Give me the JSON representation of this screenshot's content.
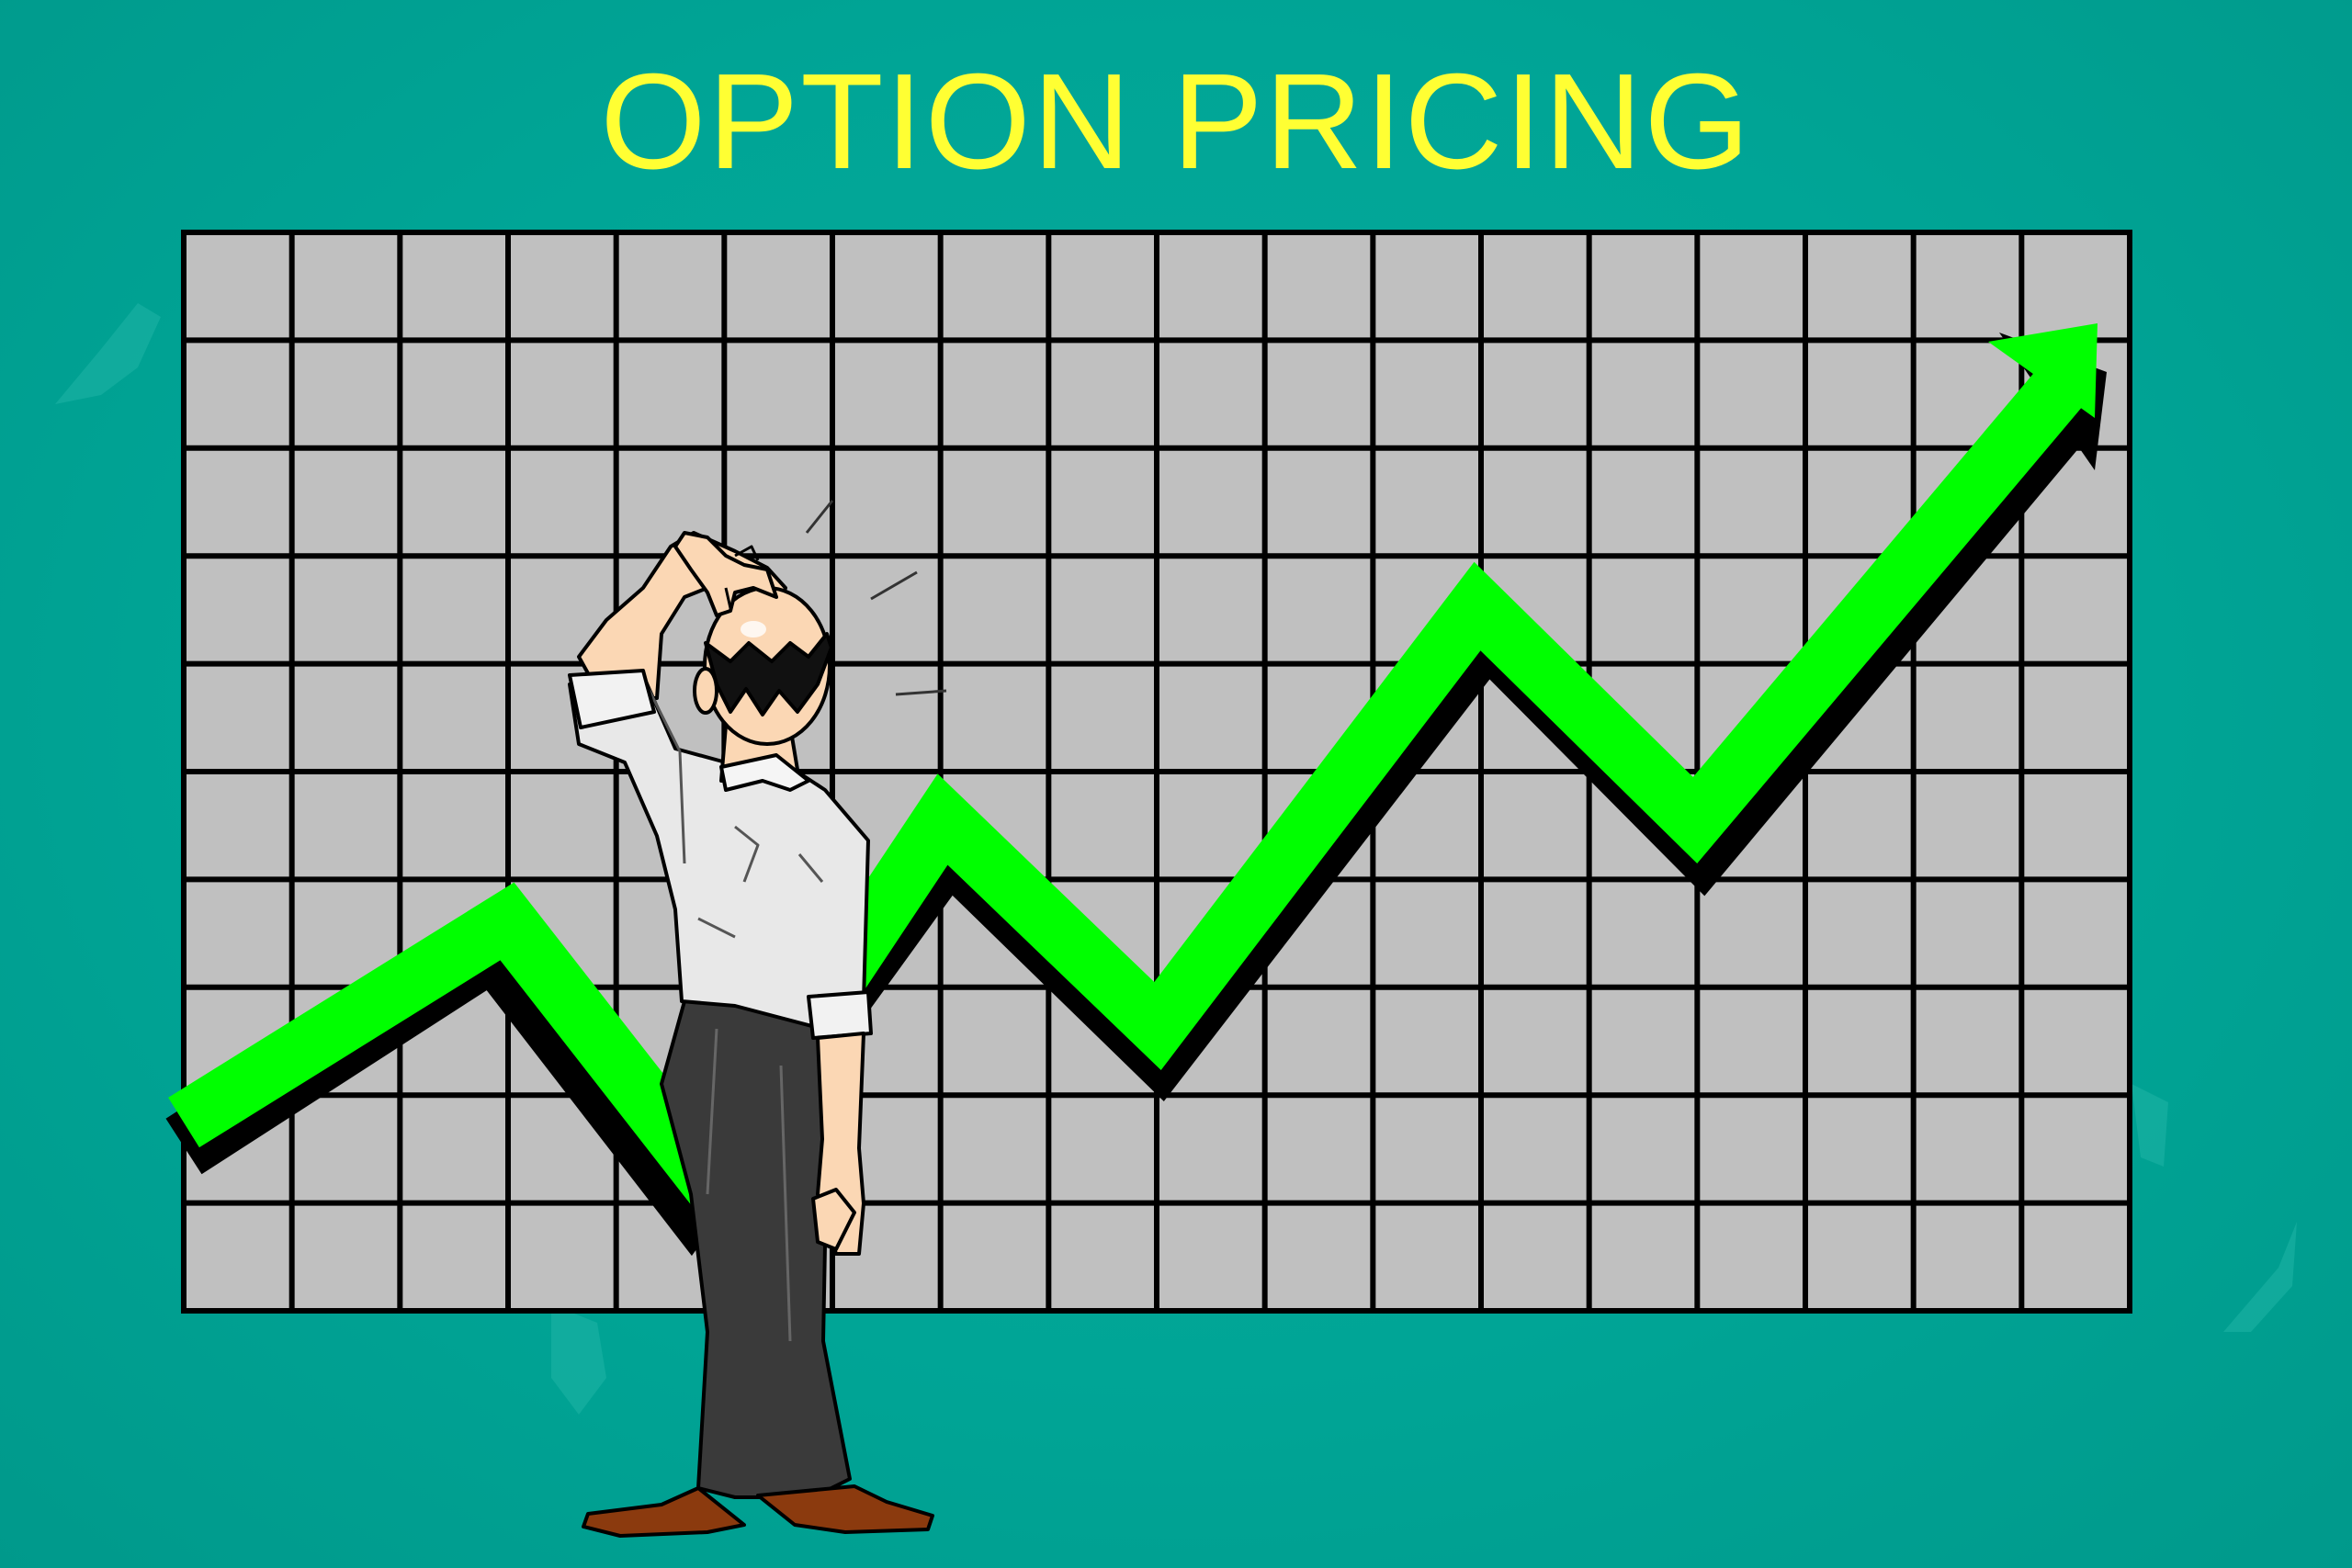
{
  "slide": {
    "title": "OPTION PRICING",
    "background_color": "#00a394",
    "title_color": "#ffff33",
    "arrow_color": "#00ff00",
    "grid_fill_color": "#c0c0c0",
    "grid_line_color": "#000000"
  },
  "illustration": {
    "icon": "confused-man-scratching-head",
    "chart_icon": "rising-zigzag-arrow"
  }
}
